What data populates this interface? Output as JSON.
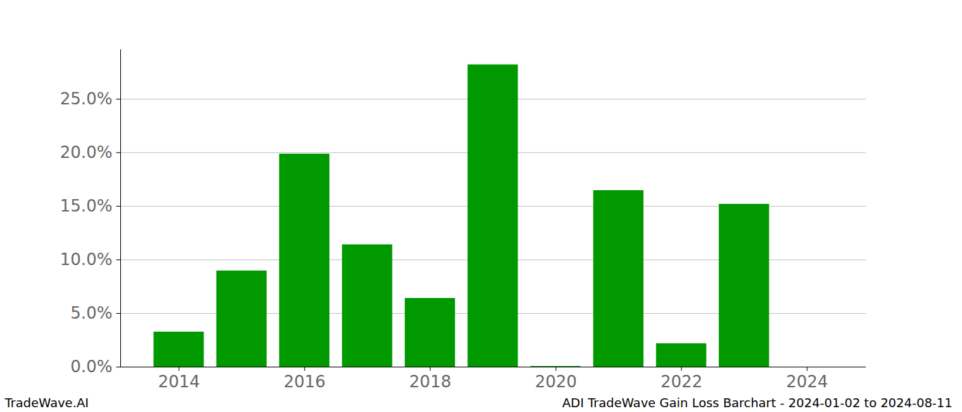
{
  "chart_data": {
    "type": "bar",
    "title": "ADI TradeWave Gain Loss Barchart - 2024-01-02 to 2024-08-11",
    "caption": "TradeWave.AI",
    "x": [
      2014,
      2015,
      2016,
      2017,
      2018,
      2019,
      2020,
      2021,
      2022,
      2023,
      2024
    ],
    "values": [
      3.27,
      8.97,
      19.87,
      11.41,
      6.41,
      28.2,
      0.06,
      16.47,
      2.18,
      15.19,
      0
    ],
    "color": "#009900",
    "xlim": [
      2013.07,
      2024.94
    ],
    "xticks": [
      2014,
      2016,
      2018,
      2020,
      2022,
      2024
    ],
    "ylim": [
      0,
      29.6
    ],
    "yticks": [
      {
        "value": 0,
        "label": "0.0%"
      },
      {
        "value": 5,
        "label": "5.0%"
      },
      {
        "value": 10,
        "label": "10.0%"
      },
      {
        "value": 15,
        "label": "15.0%"
      },
      {
        "value": 20,
        "label": "20.0%"
      },
      {
        "value": 25,
        "label": "25.0%"
      }
    ],
    "grid": true
  }
}
